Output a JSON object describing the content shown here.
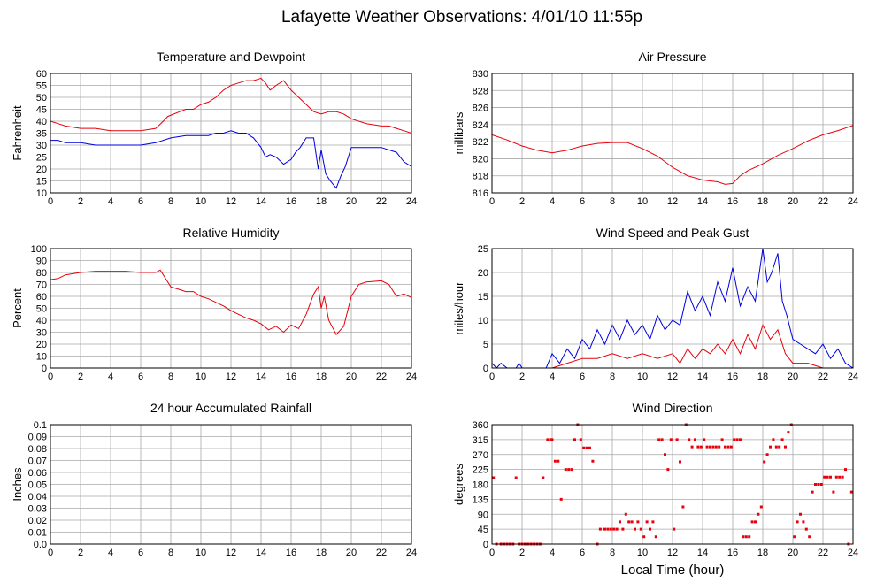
{
  "page_title": "Lafayette Weather Observations: 4/01/10 11:55p",
  "xlabel_common": "Local Time (hour)",
  "chart_data": [
    {
      "id": "temperature",
      "type": "line",
      "title": "Temperature and Dewpoint",
      "ylabel": "Fahrenheit",
      "xlabel": "",
      "xlim": [
        0,
        24
      ],
      "ylim": [
        10,
        60
      ],
      "xticks": [
        0,
        2,
        4,
        6,
        8,
        10,
        12,
        14,
        16,
        18,
        20,
        22,
        24
      ],
      "yticks": [
        10,
        15,
        20,
        25,
        30,
        35,
        40,
        45,
        50,
        55,
        60
      ],
      "grid": true,
      "series": [
        {
          "color": "#e8000b",
          "x": [
            0,
            0.5,
            1,
            2,
            3,
            4,
            5,
            6,
            7,
            7.5,
            7.8,
            8.2,
            8.6,
            9,
            9.5,
            10,
            10.5,
            11,
            11.5,
            12,
            12.5,
            13,
            13.5,
            14,
            14.3,
            14.6,
            15,
            15.5,
            16,
            16.5,
            17,
            17.5,
            18,
            18.5,
            19,
            19.5,
            20,
            21,
            22,
            22.5,
            23,
            23.5,
            24
          ],
          "values": [
            40,
            39,
            38,
            37,
            37,
            36,
            36,
            36,
            37,
            40,
            42,
            43,
            44,
            45,
            45,
            47,
            48,
            50,
            53,
            55,
            56,
            57,
            57,
            58,
            56,
            53,
            55,
            57,
            53,
            50,
            47,
            44,
            43,
            44,
            44,
            43,
            41,
            39,
            38,
            38,
            37,
            36,
            35
          ]
        },
        {
          "color": "#0000e0",
          "x": [
            0,
            0.5,
            1,
            2,
            3,
            4,
            5,
            6,
            7,
            8,
            9,
            10,
            10.5,
            11,
            11.5,
            12,
            12.5,
            13,
            13.5,
            14,
            14.3,
            14.6,
            15,
            15.5,
            16,
            16.3,
            16.6,
            17,
            17.5,
            17.8,
            18,
            18.3,
            18.6,
            19,
            19.3,
            19.6,
            20,
            21,
            22,
            23,
            23.5,
            24
          ],
          "values": [
            32,
            32,
            31,
            31,
            30,
            30,
            30,
            30,
            31,
            33,
            34,
            34,
            34,
            35,
            35,
            36,
            35,
            35,
            33,
            29,
            25,
            26,
            25,
            22,
            24,
            27,
            29,
            33,
            33,
            20,
            28,
            18,
            15,
            12,
            17,
            21,
            29,
            29,
            29,
            27,
            23,
            21
          ]
        }
      ]
    },
    {
      "id": "pressure",
      "type": "line",
      "title": "Air Pressure",
      "ylabel": "millibars",
      "xlabel": "",
      "xlim": [
        0,
        24
      ],
      "ylim": [
        816,
        830
      ],
      "xticks": [
        0,
        2,
        4,
        6,
        8,
        10,
        12,
        14,
        16,
        18,
        20,
        22,
        24
      ],
      "yticks": [
        816,
        818,
        820,
        822,
        824,
        826,
        828,
        830
      ],
      "grid": true,
      "series": [
        {
          "color": "#e8000b",
          "x": [
            0,
            1,
            2,
            3,
            4,
            5,
            6,
            7,
            8,
            9,
            10,
            11,
            12,
            13,
            14,
            14.5,
            15,
            15.5,
            16,
            16.5,
            17,
            18,
            19,
            20,
            21,
            22,
            23,
            24
          ],
          "values": [
            822.8,
            822.2,
            821.5,
            821.0,
            820.7,
            821.0,
            821.5,
            821.8,
            821.9,
            821.9,
            821.2,
            820.3,
            819.0,
            818.0,
            817.5,
            817.4,
            817.3,
            817.0,
            817.1,
            818.0,
            818.6,
            819.4,
            820.4,
            821.2,
            822.1,
            822.8,
            823.3,
            823.9
          ]
        }
      ]
    },
    {
      "id": "humidity",
      "type": "line",
      "title": "Relative Humidity",
      "ylabel": "Percent",
      "xlabel": "",
      "xlim": [
        0,
        24
      ],
      "ylim": [
        0,
        100
      ],
      "xticks": [
        0,
        2,
        4,
        6,
        8,
        10,
        12,
        14,
        16,
        18,
        20,
        22,
        24
      ],
      "yticks": [
        0,
        10,
        20,
        30,
        40,
        50,
        60,
        70,
        80,
        90,
        100
      ],
      "grid": true,
      "series": [
        {
          "color": "#e8000b",
          "x": [
            0,
            0.5,
            1,
            2,
            3,
            4,
            5,
            6,
            7,
            7.3,
            7.6,
            8,
            8.5,
            9,
            9.5,
            10,
            10.5,
            11,
            11.5,
            12,
            12.5,
            13,
            13.5,
            14,
            14.5,
            15,
            15.5,
            16,
            16.5,
            17,
            17.5,
            17.8,
            18,
            18.2,
            18.5,
            19,
            19.5,
            20,
            20.5,
            21,
            22,
            22.5,
            23,
            23.5,
            24
          ],
          "values": [
            74,
            75,
            78,
            80,
            81,
            81,
            81,
            80,
            80,
            82,
            76,
            68,
            66,
            64,
            64,
            60,
            58,
            55,
            52,
            48,
            45,
            42,
            40,
            37,
            32,
            35,
            30,
            36,
            33,
            45,
            62,
            68,
            50,
            60,
            40,
            28,
            35,
            60,
            70,
            72,
            73,
            70,
            60,
            62,
            59
          ]
        }
      ]
    },
    {
      "id": "wind_speed",
      "type": "line",
      "title": "Wind Speed and Peak Gust",
      "ylabel": "miles/hour",
      "xlabel": "",
      "xlim": [
        0,
        24
      ],
      "ylim": [
        0,
        25
      ],
      "xticks": [
        0,
        2,
        4,
        6,
        8,
        10,
        12,
        14,
        16,
        18,
        20,
        22,
        24
      ],
      "yticks": [
        0,
        5,
        10,
        15,
        20,
        25
      ],
      "grid": true,
      "series": [
        {
          "color": "#0000e0",
          "x": [
            0,
            0.3,
            0.6,
            1,
            1.6,
            1.8,
            2,
            3.6,
            4,
            4.5,
            5,
            5.5,
            6,
            6.5,
            7,
            7.5,
            8,
            8.5,
            9,
            9.5,
            10,
            10.5,
            11,
            11.5,
            12,
            12.5,
            13,
            13.5,
            14,
            14.5,
            15,
            15.5,
            16,
            16.5,
            17,
            17.5,
            18,
            18.3,
            18.6,
            19,
            19.3,
            19.6,
            20,
            20.5,
            21,
            21.5,
            22,
            22.5,
            23,
            23.5,
            24
          ],
          "values": [
            1,
            0,
            1,
            0,
            0,
            1,
            0,
            0,
            3,
            1,
            4,
            2,
            6,
            4,
            8,
            5,
            9,
            6,
            10,
            7,
            9,
            6,
            11,
            8,
            10,
            9,
            16,
            12,
            15,
            11,
            18,
            14,
            21,
            13,
            17,
            14,
            25,
            18,
            20,
            24,
            14,
            11,
            6,
            5,
            4,
            3,
            5,
            2,
            4,
            1,
            0
          ]
        },
        {
          "color": "#e8000b",
          "x": [
            0,
            4,
            5,
            6,
            7,
            8,
            9,
            10,
            11,
            12,
            12.5,
            13,
            13.5,
            14,
            14.5,
            15,
            15.5,
            16,
            16.5,
            17,
            17.5,
            18,
            18.5,
            19,
            19.5,
            20,
            21,
            22,
            23,
            24
          ],
          "values": [
            0,
            0,
            1,
            2,
            2,
            3,
            2,
            3,
            2,
            3,
            1,
            4,
            2,
            4,
            3,
            5,
            3,
            6,
            3,
            7,
            4,
            9,
            6,
            8,
            3,
            1,
            1,
            0,
            0,
            0
          ]
        }
      ]
    },
    {
      "id": "rainfall",
      "type": "line",
      "title": "24 hour Accumulated Rainfall",
      "ylabel": "Inches",
      "xlabel": "",
      "xlim": [
        0,
        24
      ],
      "ylim": [
        0.0,
        0.1
      ],
      "xticks": [
        0,
        2,
        4,
        6,
        8,
        10,
        12,
        14,
        16,
        18,
        20,
        22,
        24
      ],
      "yticks": [
        0.0,
        0.01,
        0.02,
        0.03,
        0.04,
        0.05,
        0.06,
        0.07,
        0.08,
        0.09,
        0.1
      ],
      "ytick_labels": [
        "0.0",
        "0.01",
        "0.02",
        "0.03",
        "0.04",
        "0.05",
        "0.06",
        "0.07",
        "0.08",
        "0.09",
        "0.1"
      ],
      "grid": true,
      "series": [
        {
          "color": "#e8000b",
          "x": [
            0,
            24
          ],
          "values": [
            0,
            0
          ]
        }
      ]
    },
    {
      "id": "wind_direction",
      "type": "scatter",
      "title": "Wind Direction",
      "ylabel": "degrees",
      "xlabel": "Local Time (hour)",
      "xlim": [
        0,
        24
      ],
      "ylim": [
        0,
        360
      ],
      "xticks": [
        0,
        2,
        4,
        6,
        8,
        10,
        12,
        14,
        16,
        18,
        20,
        22,
        24
      ],
      "yticks": [
        0,
        45,
        90,
        135,
        180,
        225,
        270,
        315,
        360
      ],
      "grid": true,
      "series": [
        {
          "color": "#e8000b",
          "x": [
            0.1,
            0.3,
            0.6,
            0.8,
            1.0,
            1.2,
            1.4,
            1.6,
            1.8,
            2.0,
            2.2,
            2.4,
            2.6,
            2.8,
            3.0,
            3.2,
            3.4,
            3.7,
            3.9,
            4.0,
            4.2,
            4.4,
            4.6,
            4.9,
            5.1,
            5.3,
            5.5,
            5.7,
            5.9,
            6.1,
            6.3,
            6.5,
            6.7,
            7.0,
            7.2,
            7.5,
            7.7,
            7.9,
            8.1,
            8.3,
            8.5,
            8.7,
            8.9,
            9.1,
            9.3,
            9.5,
            9.7,
            9.9,
            10.1,
            10.3,
            10.5,
            10.7,
            10.9,
            11.1,
            11.3,
            11.5,
            11.7,
            11.9,
            12.1,
            12.3,
            12.5,
            12.7,
            12.9,
            13.1,
            13.3,
            13.5,
            13.7,
            13.9,
            14.1,
            14.3,
            14.5,
            14.7,
            14.9,
            15.1,
            15.3,
            15.5,
            15.7,
            15.9,
            16.1,
            16.3,
            16.5,
            16.7,
            16.9,
            17.1,
            17.3,
            17.5,
            17.7,
            17.9,
            18.1,
            18.3,
            18.5,
            18.7,
            18.9,
            19.1,
            19.3,
            19.5,
            19.7,
            19.9,
            20.1,
            20.3,
            20.5,
            20.7,
            20.9,
            21.1,
            21.3,
            21.5,
            21.7,
            21.9,
            22.1,
            22.3,
            22.5,
            22.7,
            22.9,
            23.1,
            23.3,
            23.5,
            23.7,
            23.9
          ],
          "values": [
            200,
            0,
            0,
            0,
            0,
            0,
            0,
            200,
            0,
            0,
            0,
            0,
            0,
            0,
            0,
            0,
            200,
            315,
            315,
            315,
            250,
            250,
            135,
            225,
            225,
            225,
            315,
            360,
            315,
            290,
            290,
            290,
            250,
            0,
            45,
            45,
            45,
            45,
            45,
            45,
            67,
            45,
            90,
            67,
            67,
            45,
            67,
            45,
            22,
            67,
            45,
            67,
            22,
            315,
            315,
            270,
            225,
            315,
            45,
            315,
            248,
            112,
            360,
            315,
            293,
            315,
            293,
            293,
            315,
            293,
            293,
            293,
            293,
            293,
            315,
            293,
            293,
            293,
            315,
            315,
            315,
            22,
            22,
            22,
            67,
            67,
            90,
            112,
            248,
            270,
            293,
            315,
            293,
            293,
            315,
            293,
            337,
            360,
            22,
            67,
            90,
            67,
            45,
            22,
            157,
            180,
            180,
            180,
            202,
            202,
            202,
            157,
            202,
            202,
            202,
            225,
            0,
            157
          ]
        }
      ]
    }
  ]
}
